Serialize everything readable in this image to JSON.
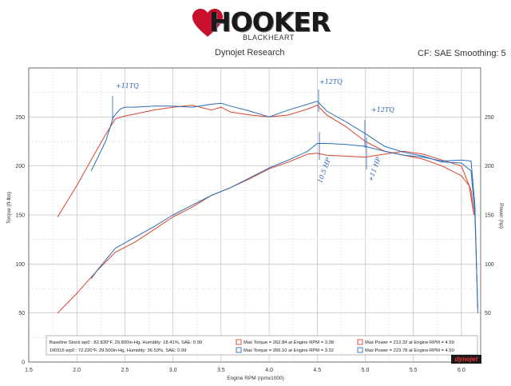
{
  "header": {
    "brand_main": "HOOKER",
    "brand_sub": "BLACKHEART",
    "left": "Dynojet Research",
    "right": "CF: SAE Smoothing: 5"
  },
  "colors": {
    "baseline": "#d9442b",
    "test": "#2a6db8",
    "annotation": "#2a5fb0"
  },
  "chart_data": {
    "type": "line",
    "xlabel": "Engine RPM (rpmx1000)",
    "ylabel_left": "Torque (ft-lbs)",
    "ylabel_right": "Power (hp)",
    "xlim": [
      1.5,
      6.2
    ],
    "ylim": [
      0,
      300
    ],
    "grid": true,
    "x_ticks": [
      "1.5",
      "2.0",
      "2.5",
      "3.0",
      "3.5",
      "4.0",
      "4.5",
      "5.0",
      "5.5",
      "6.0"
    ],
    "y_ticks_left": [
      "0",
      "50",
      "100",
      "150",
      "200",
      "250"
    ],
    "y_ticks_right": [
      "50",
      "100",
      "150",
      "200",
      "250"
    ],
    "series": [
      {
        "name": "Baseline Stock wp0",
        "metric": "torque",
        "x": [
          1.8,
          2.0,
          2.2,
          2.3,
          2.4,
          2.5,
          2.6,
          2.8,
          3.0,
          3.2,
          3.4,
          3.5,
          3.6,
          3.8,
          4.0,
          4.2,
          4.4,
          4.5,
          4.6,
          4.8,
          5.0,
          5.2,
          5.4,
          5.6,
          5.8,
          6.0,
          6.08,
          6.13
        ],
        "y": [
          148,
          180,
          215,
          232,
          248,
          251,
          253,
          257,
          260,
          262,
          257,
          260,
          255,
          252,
          250,
          252,
          258,
          262,
          252,
          240,
          225,
          215,
          211,
          207,
          200,
          190,
          180,
          150
        ]
      },
      {
        "name": "Baseline Stock wp0",
        "metric": "power",
        "x": [
          1.8,
          2.0,
          2.2,
          2.4,
          2.6,
          2.8,
          3.0,
          3.2,
          3.4,
          3.6,
          3.8,
          4.0,
          4.2,
          4.4,
          4.5,
          4.6,
          4.8,
          5.0,
          5.2,
          5.4,
          5.6,
          5.8,
          6.0,
          6.1,
          6.13
        ],
        "y": [
          50,
          70,
          92,
          112,
          122,
          135,
          148,
          158,
          170,
          178,
          187,
          197,
          204,
          212,
          213,
          211,
          210,
          209,
          212,
          215,
          212,
          206,
          200,
          175,
          150
        ]
      },
      {
        "name": "1ll0315 wp0",
        "metric": "torque",
        "x": [
          2.15,
          2.3,
          2.38,
          2.45,
          2.5,
          2.6,
          2.8,
          3.0,
          3.2,
          3.4,
          3.5,
          3.6,
          3.8,
          4.0,
          4.2,
          4.4,
          4.5,
          4.6,
          4.8,
          5.0,
          5.2,
          5.4,
          5.6,
          5.8,
          6.0,
          6.1,
          6.14,
          6.17
        ],
        "y": [
          195,
          225,
          250,
          258,
          260,
          260,
          261,
          261,
          260,
          263,
          264,
          261,
          256,
          250,
          257,
          263,
          266,
          256,
          245,
          233,
          220,
          214,
          210,
          204,
          203,
          195,
          150,
          55
        ]
      },
      {
        "name": "1ll0315 wp0",
        "metric": "power",
        "x": [
          2.15,
          2.2,
          2.4,
          2.6,
          2.8,
          3.0,
          3.2,
          3.4,
          3.6,
          3.8,
          4.0,
          4.2,
          4.4,
          4.5,
          4.6,
          4.8,
          5.0,
          5.2,
          5.4,
          5.6,
          5.8,
          6.0,
          6.1,
          6.14,
          6.17
        ],
        "y": [
          85,
          92,
          116,
          127,
          138,
          150,
          160,
          170,
          178,
          188,
          198,
          206,
          215,
          223,
          223,
          222,
          220,
          215,
          211,
          209,
          205,
          206,
          205,
          160,
          50
        ]
      }
    ],
    "annotations": [
      "+11TQ",
      "+12TQ",
      "+12TQ",
      "10.5 HP",
      "+11 HP"
    ]
  },
  "legend": {
    "rows": [
      {
        "run": "Baseline Stock wp0 : 82.830°F, 29.800in-Hg, Humidity: 18.41%, SAE: 0.99",
        "torque": "Max Torque = 262.84 at Engine RPM = 3.38",
        "power": "Max Power = 213.32 at Engine RPM = 4.59"
      },
      {
        "run": "1ll0315 wp0 : 72.220°F, 29.500in-Hg, Humidity: 36.53%, SAE: 0.99",
        "torque": "Max Torque = 266.10 at Engine RPM = 3.32",
        "power": "Max Power = 223.78 at Engine RPM = 4.50"
      }
    ]
  },
  "footer": {
    "badge": "dynojet"
  }
}
